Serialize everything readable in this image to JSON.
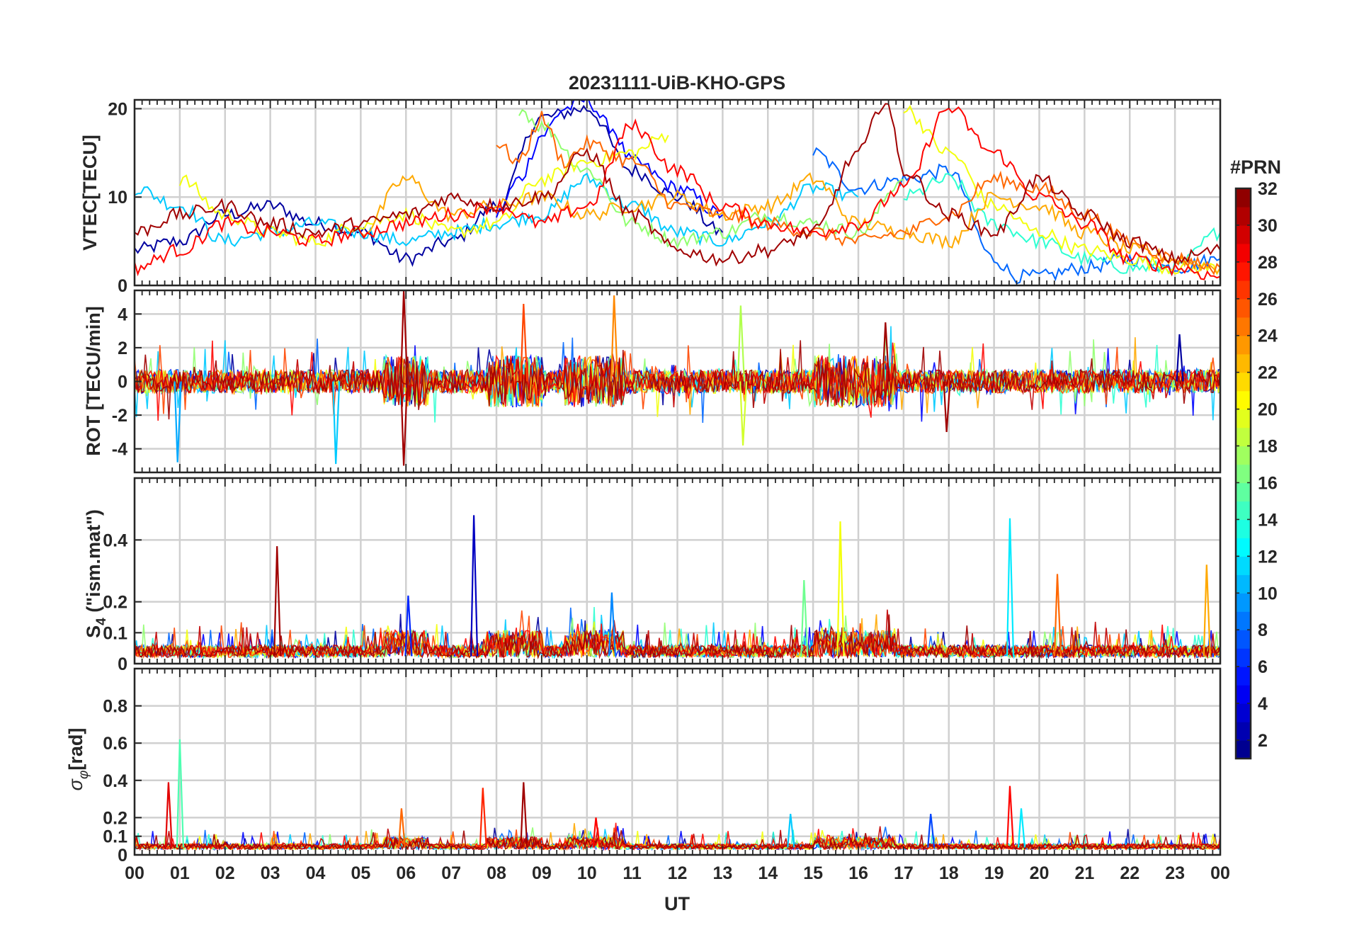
{
  "chart_data": [
    {
      "type": "line",
      "title": "20231111-UiB-KHO-GPS",
      "ylabel": "VTEC[TECU]",
      "xlabel": "",
      "xlim": [
        0,
        24
      ],
      "ylim": [
        0,
        21
      ],
      "yticks": [
        0,
        10,
        20
      ],
      "ytick_labels": [
        "0",
        "10",
        "20"
      ],
      "grid": true,
      "series": [
        {
          "prn": 2,
          "x": [
            0,
            1,
            2,
            3,
            4,
            5,
            6,
            7,
            8,
            9,
            10,
            11,
            12,
            13
          ],
          "y": [
            4,
            5,
            8,
            9,
            7,
            6,
            3,
            5,
            9,
            19,
            20,
            13,
            10,
            6
          ]
        },
        {
          "prn": 5,
          "x": [
            8,
            8.5,
            9,
            9.5,
            10,
            10.5,
            11,
            12,
            13
          ],
          "y": [
            8,
            12,
            17,
            20,
            21,
            18,
            14,
            11,
            8
          ]
        },
        {
          "prn": 8,
          "x": [
            15,
            16,
            17,
            18,
            19,
            19.5,
            20,
            21,
            22,
            23,
            24
          ],
          "y": [
            15,
            11,
            12,
            13,
            3,
            1,
            1,
            2,
            3,
            2,
            3
          ]
        },
        {
          "prn": 11,
          "x": [
            0,
            1,
            2,
            3,
            4,
            5,
            6,
            7,
            8,
            9,
            10,
            11,
            12,
            13,
            14,
            15,
            16
          ],
          "y": [
            11,
            9,
            5,
            6,
            7,
            6,
            5,
            6,
            7,
            8,
            12,
            9,
            6,
            5,
            7,
            11,
            10
          ]
        },
        {
          "prn": 14,
          "x": [
            17,
            18,
            19,
            20,
            21,
            22,
            23,
            24
          ],
          "y": [
            10,
            12,
            7,
            5,
            3,
            2,
            2,
            6
          ]
        },
        {
          "prn": 17,
          "x": [
            8.5,
            9,
            10,
            11,
            12,
            13,
            14,
            15,
            16,
            17
          ],
          "y": [
            20,
            18,
            13,
            7,
            5,
            6,
            8,
            7,
            6,
            12
          ]
        },
        {
          "prn": 20,
          "x": [
            1,
            2,
            3,
            4,
            5,
            6,
            7,
            8,
            9,
            10,
            11,
            11.8
          ],
          "y": [
            12,
            8,
            6,
            5,
            7,
            8,
            6,
            7,
            12,
            14,
            15,
            17
          ]
        },
        {
          "prn": 20,
          "x": [
            17,
            18,
            19,
            20,
            21,
            22,
            23,
            24
          ],
          "y": [
            20,
            15,
            9,
            6,
            4,
            3,
            2,
            2
          ]
        },
        {
          "prn": 23,
          "x": [
            5,
            6,
            7,
            8,
            9,
            10,
            11,
            12,
            13,
            14,
            15,
            16,
            17,
            18,
            19,
            20,
            21,
            22,
            23,
            24
          ],
          "y": [
            6,
            12,
            8,
            9,
            10,
            8,
            9,
            10,
            8,
            9,
            12,
            7,
            6,
            5,
            10,
            9,
            6,
            4,
            3,
            2
          ]
        },
        {
          "prn": 25,
          "x": [
            8,
            8.5,
            9,
            9.5,
            10,
            11,
            12,
            13,
            14,
            15,
            16,
            17,
            18,
            19,
            20,
            21,
            22,
            23,
            24
          ],
          "y": [
            16,
            14,
            19,
            14,
            16,
            14,
            9,
            8,
            7,
            6,
            5,
            6,
            8,
            12,
            11,
            8,
            5,
            3,
            2
          ]
        },
        {
          "prn": 28,
          "x": [
            0,
            1,
            2,
            3,
            4,
            5,
            6,
            7,
            8,
            9,
            10,
            11,
            12,
            13,
            14,
            15,
            16,
            17,
            18,
            19,
            20,
            21,
            22,
            23,
            24
          ],
          "y": [
            2,
            4,
            7,
            6,
            5,
            6,
            7,
            8,
            9,
            7,
            9,
            18,
            13,
            9,
            7,
            6,
            7,
            11,
            20,
            15,
            10,
            7,
            3,
            2,
            1
          ]
        },
        {
          "prn": 31,
          "x": [
            0,
            1,
            2,
            3,
            4,
            5,
            6,
            7,
            8,
            9,
            10,
            11,
            12,
            13,
            14,
            15,
            16,
            16.6,
            17,
            18,
            19,
            20,
            21,
            22,
            23,
            24
          ],
          "y": [
            6,
            8,
            9,
            7,
            6,
            7,
            8,
            10,
            9,
            10,
            15,
            8,
            4,
            3,
            4,
            6,
            15,
            21,
            13,
            8,
            6,
            12,
            8,
            5,
            3,
            4
          ]
        }
      ]
    },
    {
      "type": "line",
      "ylabel": "ROT [TECU/min]",
      "xlim": [
        0,
        24
      ],
      "ylim": [
        -5.4,
        5.4
      ],
      "yticks": [
        -4,
        -2,
        0,
        2,
        4
      ],
      "ytick_labels": [
        "-4",
        "-2",
        "0",
        "2",
        "4"
      ],
      "grid": true,
      "spikes": [
        {
          "prn": 31,
          "x": 5.95,
          "y": 5.4
        },
        {
          "prn": 31,
          "x": 5.95,
          "y": -5.0
        },
        {
          "prn": 10,
          "x": 0.95,
          "y": -4.8
        },
        {
          "prn": 11,
          "x": 4.45,
          "y": -4.9
        },
        {
          "prn": 26,
          "x": 8.6,
          "y": 4.6
        },
        {
          "prn": 24,
          "x": 10.6,
          "y": 5.1
        },
        {
          "prn": 18,
          "x": 13.4,
          "y": 4.5
        },
        {
          "prn": 19,
          "x": 13.45,
          "y": -3.8
        },
        {
          "prn": 31,
          "x": 16.6,
          "y": 3.5
        },
        {
          "prn": 31,
          "x": 17.95,
          "y": -3.0
        },
        {
          "prn": 2,
          "x": 23.1,
          "y": 2.8
        }
      ]
    },
    {
      "type": "line",
      "ylabel": "S4 (\"ism.mat\")",
      "ylabel_parts": {
        "main": "S",
        "sub": "4",
        "rest": "  (\"ism.mat\")"
      },
      "xlim": [
        0,
        24
      ],
      "ylim": [
        0,
        0.6
      ],
      "yticks": [
        0,
        0.1,
        0.2,
        0.4
      ],
      "ytick_labels": [
        "0",
        "0.1",
        "0.2",
        "0.4"
      ],
      "grid": true,
      "spikes": [
        {
          "prn": 31,
          "x": 3.15,
          "y": 0.38
        },
        {
          "prn": 3,
          "x": 7.5,
          "y": 0.48
        },
        {
          "prn": 6,
          "x": 6.05,
          "y": 0.22
        },
        {
          "prn": 9,
          "x": 10.55,
          "y": 0.23
        },
        {
          "prn": 20,
          "x": 15.6,
          "y": 0.46
        },
        {
          "prn": 16,
          "x": 14.8,
          "y": 0.27
        },
        {
          "prn": 12,
          "x": 19.35,
          "y": 0.47
        },
        {
          "prn": 25,
          "x": 20.4,
          "y": 0.29
        },
        {
          "prn": 23,
          "x": 23.7,
          "y": 0.32
        }
      ]
    },
    {
      "type": "line",
      "ylabel": "σφ [rad]",
      "ylabel_parts": {
        "main": "σ",
        "sub": "φ",
        "rest": "[rad]"
      },
      "xlabel": "UT",
      "xlim": [
        0,
        24
      ],
      "ylim": [
        0,
        1
      ],
      "yticks": [
        0,
        0.1,
        0.2,
        0.4,
        0.6,
        0.8
      ],
      "ytick_labels": [
        "0",
        "0.1",
        "0.2",
        "0.4",
        "0.6",
        "0.8"
      ],
      "xtick_labels": [
        "00",
        "01",
        "02",
        "03",
        "04",
        "05",
        "06",
        "07",
        "08",
        "09",
        "10",
        "11",
        "12",
        "13",
        "14",
        "15",
        "16",
        "17",
        "18",
        "19",
        "20",
        "21",
        "22",
        "23",
        "00"
      ],
      "grid": true,
      "spikes": [
        {
          "prn": 15,
          "x": 1.0,
          "y": 0.62
        },
        {
          "prn": 29,
          "x": 0.75,
          "y": 0.39
        },
        {
          "prn": 27,
          "x": 7.7,
          "y": 0.36
        },
        {
          "prn": 31,
          "x": 8.6,
          "y": 0.39
        },
        {
          "prn": 28,
          "x": 10.2,
          "y": 0.2
        },
        {
          "prn": 25,
          "x": 5.9,
          "y": 0.25
        },
        {
          "prn": 28,
          "x": 19.35,
          "y": 0.37
        },
        {
          "prn": 12,
          "x": 19.6,
          "y": 0.25
        },
        {
          "prn": 7,
          "x": 17.6,
          "y": 0.22
        },
        {
          "prn": 11,
          "x": 14.5,
          "y": 0.22
        }
      ]
    }
  ],
  "colorbar": {
    "title": "#PRN",
    "colormap": "jet",
    "range": [
      1,
      32
    ],
    "tick_labels": [
      "2",
      "4",
      "6",
      "8",
      "10",
      "12",
      "14",
      "16",
      "18",
      "20",
      "22",
      "24",
      "26",
      "28",
      "30",
      "32"
    ]
  }
}
